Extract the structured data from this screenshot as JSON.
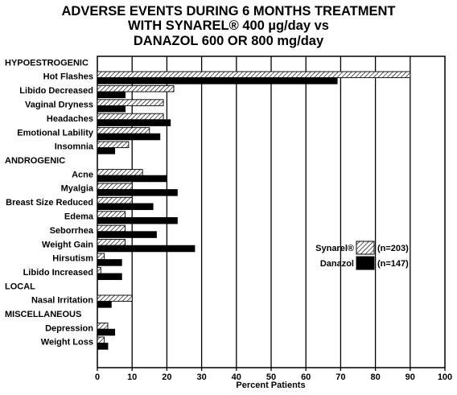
{
  "title_lines": [
    "ADVERSE EVENTS DURING 6 MONTHS TREATMENT",
    "WITH SYNAREL® 400 µg/day vs",
    "DANAZOL 600 OR 800 mg/day"
  ],
  "chart_data": {
    "type": "bar",
    "orientation": "horizontal",
    "xlabel": "Percent Patients",
    "xlim": [
      0,
      100
    ],
    "xticks": [
      0,
      10,
      20,
      30,
      40,
      50,
      60,
      70,
      80,
      90,
      100
    ],
    "grid": "vertical",
    "legend": {
      "placement": "right",
      "entries": [
        {
          "label": "Synarel®",
          "n": "(n=203)",
          "pattern": "hatched"
        },
        {
          "label": "Danazol",
          "n": "(n=147)",
          "pattern": "solid"
        }
      ]
    },
    "series_names": [
      "Synarel®",
      "Danazol"
    ],
    "groups": [
      {
        "header": "HYPOESTROGENIC",
        "items": [
          {
            "label": "Hot Flashes",
            "synarel": 90,
            "danazol": 69
          },
          {
            "label": "Libido Decreased",
            "synarel": 22,
            "danazol": 8
          },
          {
            "label": "Vaginal Dryness",
            "synarel": 19,
            "danazol": 8
          },
          {
            "label": "Headaches",
            "synarel": 19,
            "danazol": 21
          },
          {
            "label": "Emotional Lability",
            "synarel": 15,
            "danazol": 18
          },
          {
            "label": "Insomnia",
            "synarel": 9,
            "danazol": 5
          }
        ]
      },
      {
        "header": "ANDROGENIC",
        "items": [
          {
            "label": "Acne",
            "synarel": 13,
            "danazol": 20
          },
          {
            "label": "Myalgia",
            "synarel": 10,
            "danazol": 23
          },
          {
            "label": "Breast Size Reduced",
            "synarel": 10,
            "danazol": 16
          },
          {
            "label": "Edema",
            "synarel": 8,
            "danazol": 23
          },
          {
            "label": "Seborrhea",
            "synarel": 8,
            "danazol": 17
          },
          {
            "label": "Weight Gain",
            "synarel": 8,
            "danazol": 28
          },
          {
            "label": "Hirsutism",
            "synarel": 2,
            "danazol": 7
          },
          {
            "label": "Libido Increased",
            "synarel": 1,
            "danazol": 7
          }
        ]
      },
      {
        "header": "LOCAL",
        "items": [
          {
            "label": "Nasal Irritation",
            "synarel": 10,
            "danazol": 4
          }
        ]
      },
      {
        "header": "MISCELLANEOUS",
        "items": [
          {
            "label": "Depression",
            "synarel": 3,
            "danazol": 5
          },
          {
            "label": "Weight Loss",
            "synarel": 2,
            "danazol": 3
          }
        ]
      }
    ]
  }
}
